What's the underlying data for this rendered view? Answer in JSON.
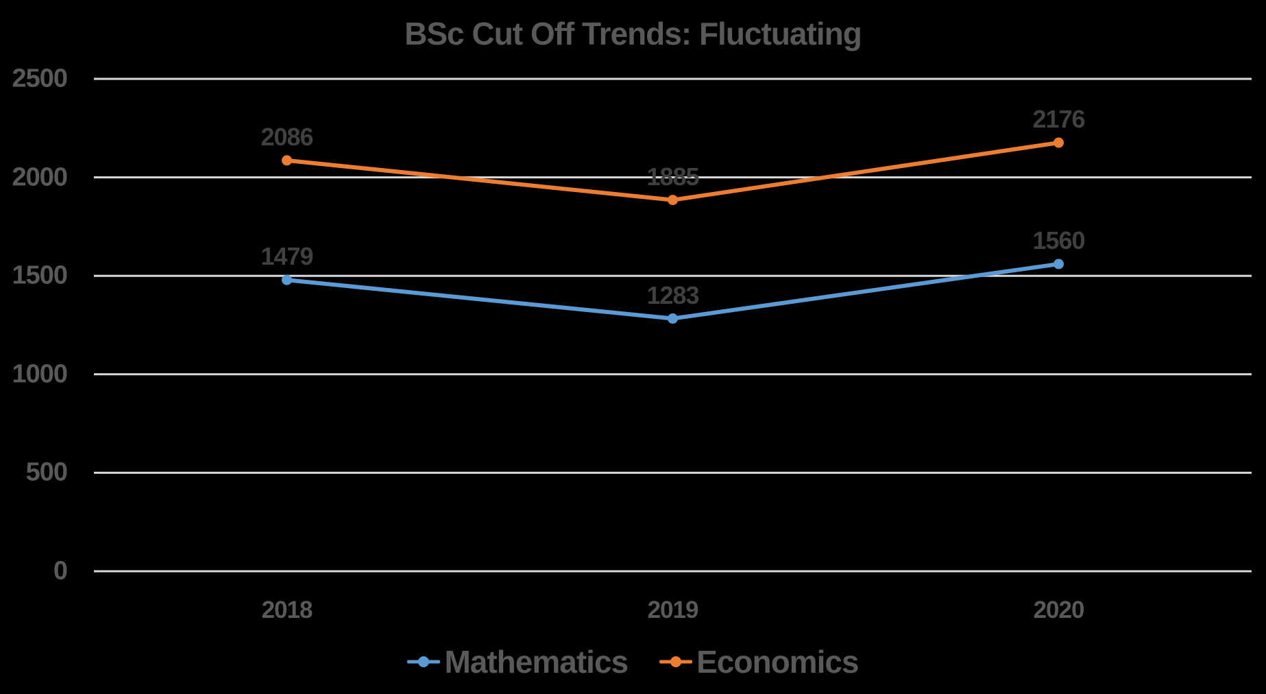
{
  "chart_data": {
    "type": "line",
    "title": "BSc Cut Off Trends: Fluctuating",
    "categories": [
      "2018",
      "2019",
      "2020"
    ],
    "series": [
      {
        "name": "Mathematics",
        "values": [
          1479,
          1283,
          1560
        ],
        "color": "#5B9BD5"
      },
      {
        "name": "Economics",
        "values": [
          2086,
          1885,
          2176
        ],
        "color": "#ED7D31"
      }
    ],
    "yticks": [
      0,
      500,
      1000,
      1500,
      2000,
      2500
    ],
    "ylim": [
      0,
      2500
    ],
    "xlabel": "",
    "ylabel": "",
    "grid": "horizontal",
    "legend_position": "bottom",
    "data_labels": true
  },
  "colors": {
    "background": "#000000",
    "title_text": "#595959",
    "axis_text": "#595959",
    "data_label_text": "#404040",
    "gridline": "#D9D9D9"
  }
}
